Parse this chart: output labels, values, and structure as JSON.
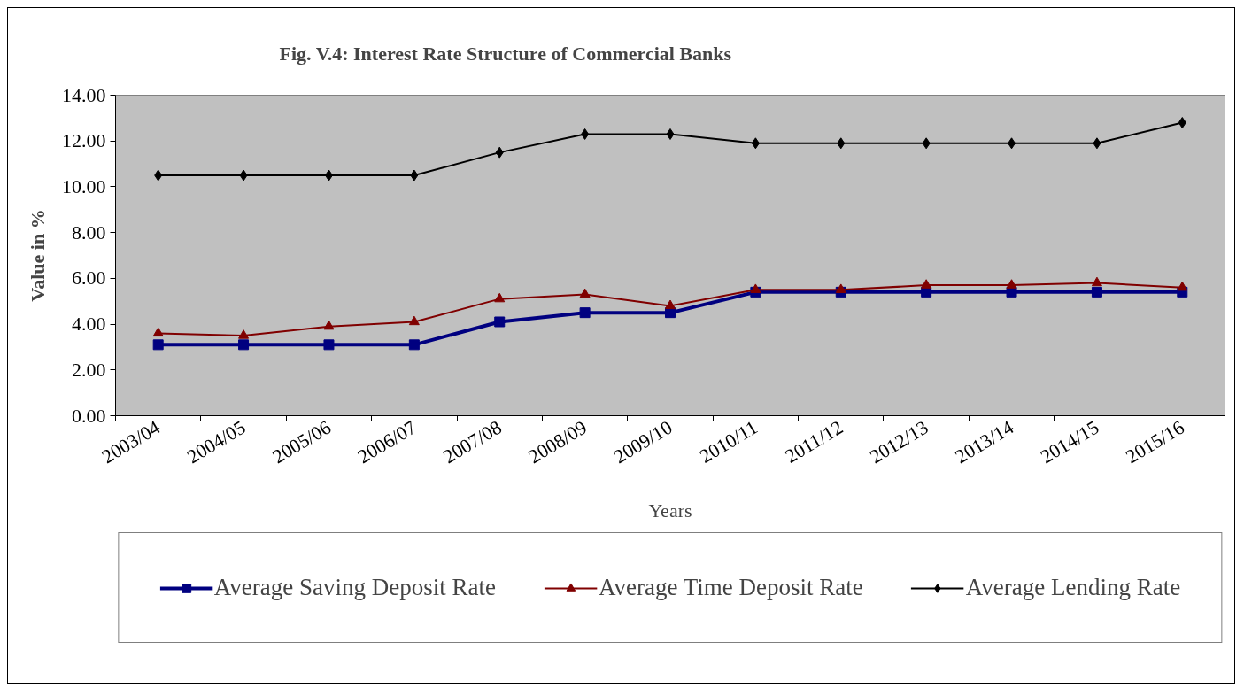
{
  "chart_data": {
    "type": "line",
    "title": "Fig. V.4: Interest Rate Structure of Commercial Banks",
    "xlabel": "Years",
    "ylabel": "Value in %",
    "categories": [
      "2003/04",
      "2004/05",
      "2005/06",
      "2006/07",
      "2007/08",
      "2008/09",
      "2009/10",
      "2010/11",
      "2011/12",
      "2012/13",
      "2013/14",
      "2014/15",
      "2015/16"
    ],
    "series": [
      {
        "name": "Average Saving Deposit Rate",
        "color": "#000080",
        "marker": "square",
        "values": [
          3.1,
          3.1,
          3.1,
          3.1,
          4.1,
          4.5,
          4.5,
          5.4,
          5.4,
          5.4,
          5.4,
          5.4,
          5.4
        ]
      },
      {
        "name": "Average Time Deposit Rate",
        "color": "#800000",
        "marker": "triangle",
        "values": [
          3.6,
          3.5,
          3.9,
          4.1,
          5.1,
          5.3,
          4.8,
          5.5,
          5.5,
          5.7,
          5.7,
          5.8,
          5.6
        ]
      },
      {
        "name": "Average Lending Rate",
        "color": "#000000",
        "marker": "diamond",
        "values": [
          10.5,
          10.5,
          10.5,
          10.5,
          11.5,
          12.3,
          12.3,
          11.9,
          11.9,
          11.9,
          11.9,
          11.9,
          12.8
        ]
      }
    ],
    "ylim": [
      0,
      14
    ],
    "yticks": [
      {
        "value": 0,
        "label": "0.00"
      },
      {
        "value": 2,
        "label": "2.00"
      },
      {
        "value": 4,
        "label": "4.00"
      },
      {
        "value": 6,
        "label": "6.00"
      },
      {
        "value": 8,
        "label": "8.00"
      },
      {
        "value": 10,
        "label": "10.00"
      },
      {
        "value": 12,
        "label": "12.00"
      },
      {
        "value": 14,
        "label": "14.00"
      }
    ],
    "legend": "bottom",
    "line_style": "solid"
  }
}
